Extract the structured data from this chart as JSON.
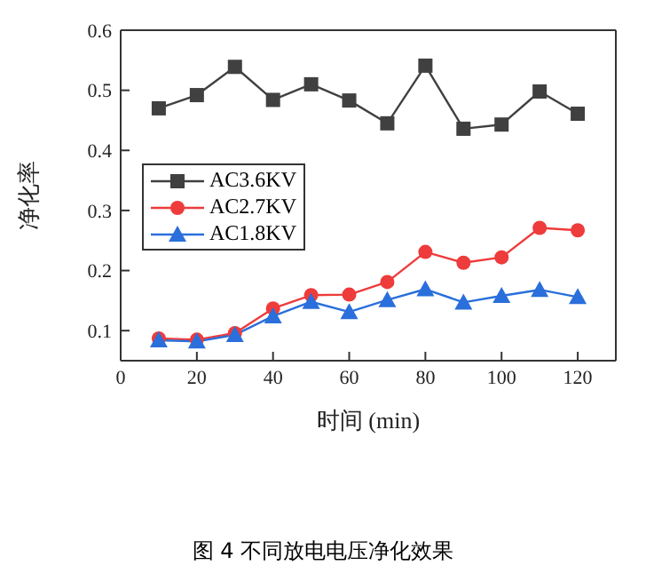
{
  "chart_data": {
    "type": "line",
    "xlabel": "时间 (min)",
    "ylabel": "净化率",
    "annotations": [
      "图 4 不同放电电压净化效果"
    ],
    "x": [
      10,
      20,
      30,
      40,
      50,
      60,
      70,
      80,
      90,
      100,
      110,
      120
    ],
    "series": [
      {
        "name": "AC3.6KV",
        "color": "#404040",
        "marker": "square",
        "values": [
          0.47,
          0.492,
          0.539,
          0.484,
          0.51,
          0.483,
          0.445,
          0.541,
          0.436,
          0.443,
          0.498,
          0.461
        ]
      },
      {
        "name": "AC2.7KV",
        "color": "#ee3b3b",
        "marker": "circle",
        "values": [
          0.087,
          0.085,
          0.096,
          0.137,
          0.159,
          0.16,
          0.181,
          0.231,
          0.213,
          0.222,
          0.271,
          0.267
        ]
      },
      {
        "name": "AC1.8KV",
        "color": "#2a6fdb",
        "marker": "triangle",
        "values": [
          0.084,
          0.082,
          0.093,
          0.124,
          0.148,
          0.131,
          0.151,
          0.169,
          0.147,
          0.158,
          0.168,
          0.156
        ]
      }
    ],
    "xlim": [
      0,
      130
    ],
    "xticks": [
      0,
      20,
      40,
      60,
      80,
      100,
      120
    ],
    "ylim": [
      0.05,
      0.6
    ],
    "yticks": [
      0.1,
      0.2,
      0.3,
      0.4,
      0.5,
      0.6
    ],
    "grid": false,
    "legend": "left",
    "line_style": "solid"
  }
}
